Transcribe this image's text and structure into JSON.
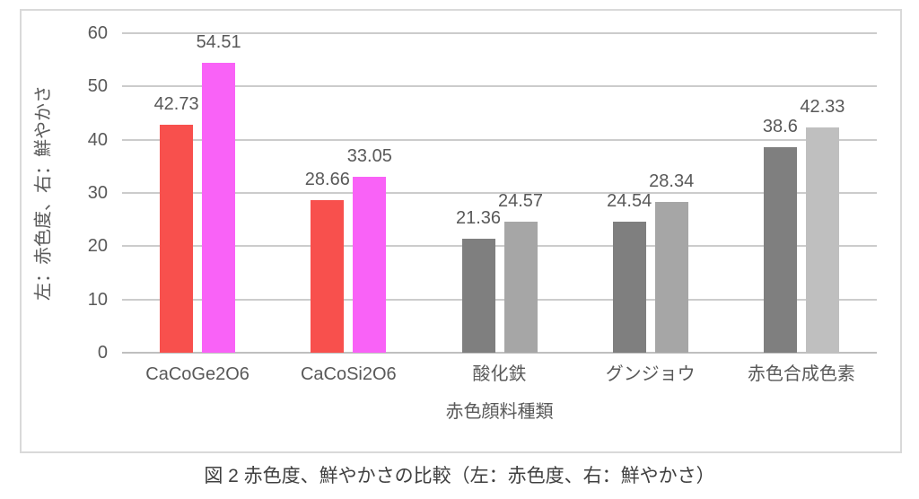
{
  "figure": {
    "caption": "図 2 赤色度、鮮やかさの比較（左：赤色度、右：鮮やかさ）"
  },
  "chart_data": {
    "type": "bar",
    "title": "",
    "xlabel": "赤色顔料種類",
    "ylabel": "左：赤色度、右：鮮やかさ",
    "ylim": [
      0,
      60
    ],
    "yticks": [
      0,
      10,
      20,
      30,
      40,
      50,
      60
    ],
    "grid": true,
    "legend_position": "none",
    "categories": [
      "CaCoGe2O6",
      "CaCoSi2O6",
      "酸化鉄",
      "グンジョウ",
      "赤色合成色素"
    ],
    "series": [
      {
        "name": "赤色度",
        "position": "left",
        "values": [
          42.73,
          28.66,
          21.36,
          24.54,
          38.6
        ],
        "labels": [
          "42.73",
          "28.66",
          "21.36",
          "24.54",
          "38.6"
        ],
        "bar_colors": [
          "#f8504d",
          "#f8504d",
          "#7f7f7f",
          "#7f7f7f",
          "#7f7f7f"
        ]
      },
      {
        "name": "鮮やかさ",
        "position": "right",
        "values": [
          54.51,
          33.05,
          24.57,
          28.34,
          42.33
        ],
        "labels": [
          "54.51",
          "33.05",
          "24.57",
          "28.34",
          "42.33"
        ],
        "bar_colors": [
          "#f962f7",
          "#f962f7",
          "#a6a6a6",
          "#a6a6a6",
          "#bfbfbf"
        ]
      }
    ],
    "colors": {
      "gridline": "#cccccc",
      "axis_line": "#bfbfbf",
      "chart_border": "#d9d9d9",
      "tick_text": "#595959",
      "caption_text": "#404040"
    }
  }
}
